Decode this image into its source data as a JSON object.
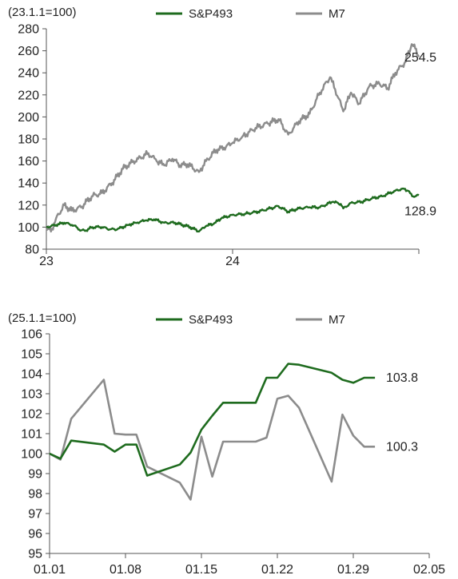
{
  "colors": {
    "sp493": "#1e6b1e",
    "m7": "#8c8c8c",
    "axis": "#555555"
  },
  "chart_data": [
    {
      "type": "line",
      "title": "",
      "index_label": "(23.1.1=100)",
      "xlabel": "",
      "ylabel": "",
      "x_start": "2023-01-01",
      "x_end": "2024-12-31",
      "x_ticks": [
        {
          "date": "2023-01-01",
          "label": "23"
        },
        {
          "date": "2024-01-01",
          "label": "24"
        }
      ],
      "ylim": [
        80,
        280
      ],
      "y_ticks": [
        80,
        100,
        120,
        140,
        160,
        180,
        200,
        220,
        240,
        260,
        280
      ],
      "grid": false,
      "legend": "top-center",
      "series": [
        {
          "name": "S&P493",
          "color_key": "sp493",
          "end_label": "128.9",
          "points": [
            [
              "2023-01-01",
              100
            ],
            [
              "2023-01-20",
              102
            ],
            [
              "2023-02-05",
              104
            ],
            [
              "2023-02-20",
              102
            ],
            [
              "2023-03-01",
              100
            ],
            [
              "2023-03-10",
              97
            ],
            [
              "2023-03-20",
              97
            ],
            [
              "2023-04-01",
              100
            ],
            [
              "2023-04-20",
              100
            ],
            [
              "2023-05-05",
              98
            ],
            [
              "2023-05-20",
              98
            ],
            [
              "2023-06-10",
              102
            ],
            [
              "2023-06-25",
              104
            ],
            [
              "2023-07-15",
              106
            ],
            [
              "2023-07-31",
              107
            ],
            [
              "2023-08-20",
              104
            ],
            [
              "2023-09-10",
              104
            ],
            [
              "2023-09-25",
              102
            ],
            [
              "2023-10-10",
              100
            ],
            [
              "2023-10-27",
              96
            ],
            [
              "2023-11-10",
              101
            ],
            [
              "2023-11-25",
              103
            ],
            [
              "2023-12-10",
              108
            ],
            [
              "2023-12-31",
              111
            ],
            [
              "2024-01-25",
              112
            ],
            [
              "2024-02-20",
              114
            ],
            [
              "2024-03-15",
              117
            ],
            [
              "2024-03-31",
              119
            ],
            [
              "2024-04-19",
              114
            ],
            [
              "2024-05-10",
              117
            ],
            [
              "2024-05-31",
              118
            ],
            [
              "2024-06-20",
              118
            ],
            [
              "2024-07-15",
              123
            ],
            [
              "2024-07-31",
              121
            ],
            [
              "2024-08-05",
              117
            ],
            [
              "2024-08-20",
              122
            ],
            [
              "2024-09-10",
              123
            ],
            [
              "2024-09-30",
              126
            ],
            [
              "2024-10-20",
              128
            ],
            [
              "2024-11-15",
              133
            ],
            [
              "2024-11-30",
              135
            ],
            [
              "2024-12-10",
              133
            ],
            [
              "2024-12-18",
              128
            ],
            [
              "2024-12-31",
              128.9
            ]
          ]
        },
        {
          "name": "M7",
          "color_key": "m7",
          "end_label": "254.5",
          "points": [
            [
              "2023-01-01",
              100
            ],
            [
              "2023-01-10",
              96
            ],
            [
              "2023-01-20",
              108
            ],
            [
              "2023-02-05",
              120
            ],
            [
              "2023-02-20",
              115
            ],
            [
              "2023-03-10",
              118
            ],
            [
              "2023-03-31",
              128
            ],
            [
              "2023-04-20",
              131
            ],
            [
              "2023-05-10",
              140
            ],
            [
              "2023-05-31",
              153
            ],
            [
              "2023-06-15",
              158
            ],
            [
              "2023-06-30",
              162
            ],
            [
              "2023-07-20",
              167
            ],
            [
              "2023-08-05",
              160
            ],
            [
              "2023-08-20",
              156
            ],
            [
              "2023-09-05",
              162
            ],
            [
              "2023-09-20",
              156
            ],
            [
              "2023-10-05",
              157
            ],
            [
              "2023-10-27",
              150
            ],
            [
              "2023-11-10",
              160
            ],
            [
              "2023-11-30",
              170
            ],
            [
              "2023-12-15",
              172
            ],
            [
              "2023-12-31",
              176
            ],
            [
              "2024-01-20",
              182
            ],
            [
              "2024-02-15",
              190
            ],
            [
              "2024-03-10",
              194
            ],
            [
              "2024-03-31",
              198
            ],
            [
              "2024-04-19",
              184
            ],
            [
              "2024-05-10",
              196
            ],
            [
              "2024-05-31",
              203
            ],
            [
              "2024-06-20",
              222
            ],
            [
              "2024-07-10",
              236
            ],
            [
              "2024-07-20",
              225
            ],
            [
              "2024-08-05",
              205
            ],
            [
              "2024-08-20",
              222
            ],
            [
              "2024-09-05",
              212
            ],
            [
              "2024-09-25",
              228
            ],
            [
              "2024-10-15",
              230
            ],
            [
              "2024-10-31",
              226
            ],
            [
              "2024-11-15",
              240
            ],
            [
              "2024-12-05",
              250
            ],
            [
              "2024-12-17",
              266
            ],
            [
              "2024-12-24",
              262
            ],
            [
              "2024-12-31",
              254.5
            ]
          ]
        }
      ]
    },
    {
      "type": "line",
      "title": "",
      "index_label": "(25.1.1=100)",
      "xlabel": "",
      "ylabel": "",
      "x_start": "2025-01-01",
      "x_end": "2025-02-05",
      "x_ticks": [
        {
          "date": "2025-01-01",
          "label": "01.01"
        },
        {
          "date": "2025-01-08",
          "label": "01.08"
        },
        {
          "date": "2025-01-15",
          "label": "01.15"
        },
        {
          "date": "2025-01-22",
          "label": "01.22"
        },
        {
          "date": "2025-01-29",
          "label": "01.29"
        },
        {
          "date": "2025-02-05",
          "label": "02.05"
        }
      ],
      "ylim": [
        95,
        106
      ],
      "y_ticks": [
        95,
        96,
        97,
        98,
        99,
        100,
        101,
        102,
        103,
        104,
        105,
        106
      ],
      "grid": false,
      "legend": "top-center",
      "series": [
        {
          "name": "S&P493",
          "color_key": "sp493",
          "end_label": "103.8",
          "points": [
            [
              "2025-01-01",
              100
            ],
            [
              "2025-01-02",
              99.75
            ],
            [
              "2025-01-03",
              100.65
            ],
            [
              "2025-01-06",
              100.45
            ],
            [
              "2025-01-07",
              100.1
            ],
            [
              "2025-01-08",
              100.45
            ],
            [
              "2025-01-09",
              100.45
            ],
            [
              "2025-01-10",
              98.9
            ],
            [
              "2025-01-13",
              99.45
            ],
            [
              "2025-01-14",
              100.05
            ],
            [
              "2025-01-15",
              101.2
            ],
            [
              "2025-01-16",
              101.9
            ],
            [
              "2025-01-17",
              102.55
            ],
            [
              "2025-01-20",
              102.55
            ],
            [
              "2025-01-21",
              103.8
            ],
            [
              "2025-01-22",
              103.8
            ],
            [
              "2025-01-23",
              104.5
            ],
            [
              "2025-01-24",
              104.45
            ],
            [
              "2025-01-27",
              104.05
            ],
            [
              "2025-01-28",
              103.7
            ],
            [
              "2025-01-29",
              103.55
            ],
            [
              "2025-01-30",
              103.8
            ],
            [
              "2025-01-31",
              103.8
            ]
          ]
        },
        {
          "name": "M7",
          "color_key": "m7",
          "end_label": "100.3",
          "points": [
            [
              "2025-01-01",
              100
            ],
            [
              "2025-01-02",
              99.7
            ],
            [
              "2025-01-03",
              101.75
            ],
            [
              "2025-01-06",
              103.7
            ],
            [
              "2025-01-07",
              101.0
            ],
            [
              "2025-01-08",
              100.95
            ],
            [
              "2025-01-09",
              100.95
            ],
            [
              "2025-01-10",
              99.35
            ],
            [
              "2025-01-13",
              98.55
            ],
            [
              "2025-01-14",
              97.7
            ],
            [
              "2025-01-15",
              100.85
            ],
            [
              "2025-01-16",
              98.85
            ],
            [
              "2025-01-17",
              100.6
            ],
            [
              "2025-01-20",
              100.6
            ],
            [
              "2025-01-21",
              100.8
            ],
            [
              "2025-01-22",
              102.75
            ],
            [
              "2025-01-23",
              102.9
            ],
            [
              "2025-01-24",
              102.3
            ],
            [
              "2025-01-27",
              98.6
            ],
            [
              "2025-01-28",
              101.95
            ],
            [
              "2025-01-29",
              100.9
            ],
            [
              "2025-01-30",
              100.35
            ],
            [
              "2025-01-31",
              100.35
            ]
          ]
        }
      ]
    }
  ]
}
